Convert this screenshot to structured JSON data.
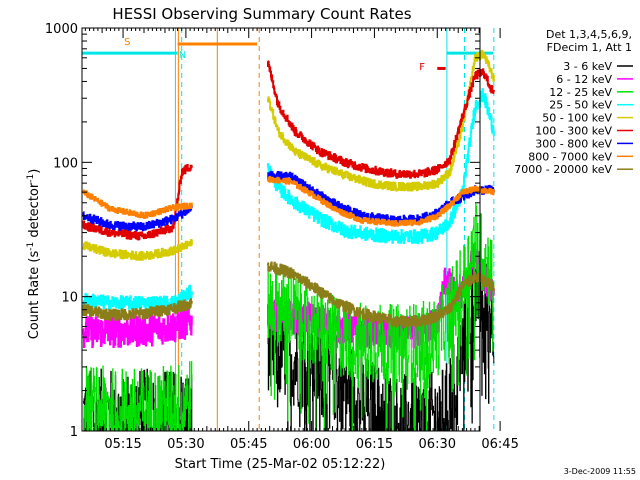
{
  "chart_data": {
    "type": "line",
    "title": "HESSI Observing Summary Count Rates",
    "xlabel": "Start Time (25-Mar-02 05:12:22)",
    "ylabel_main": "Count Rate (s",
    "ylabel_sup1": "-1",
    "ylabel_mid": " detector",
    "ylabel_sup2": "-1",
    "ylabel_end": ")",
    "y_scale": "log",
    "ylim": [
      1,
      1000
    ],
    "xlim_minutes": [
      5.2,
      100.2
    ],
    "x_ticks": [
      {
        "label": "05:15",
        "t": 15
      },
      {
        "label": "05:30",
        "t": 30
      },
      {
        "label": "05:45",
        "t": 45
      },
      {
        "label": "06:00",
        "t": 60
      },
      {
        "label": "06:15",
        "t": 75
      },
      {
        "label": "06:30",
        "t": 90
      },
      {
        "label": "06:45",
        "t": 105
      }
    ],
    "y_ticks": [
      {
        "label": "1",
        "v": 1
      },
      {
        "label": "10",
        "v": 10
      },
      {
        "label": "100",
        "v": 100
      },
      {
        "label": "1000",
        "v": 1000
      }
    ],
    "legend": {
      "placement": "right",
      "header": [
        "Det 1,3,4,5,6,9,",
        "FDecim 1, Att 1"
      ]
    },
    "timestamp": "3-Dec-2009 11:55",
    "annotations": [
      {
        "label": "S",
        "t": 16.0,
        "v": 800,
        "color": "#ff8000"
      },
      {
        "label": "N",
        "t": 29.2,
        "v": 640,
        "color": "#00e5e5"
      },
      {
        "label": "F",
        "t": 86.4,
        "v": 520,
        "color": "#e00000"
      }
    ],
    "markers": {
      "cyan_solid_t": [
        5.2,
        27.5,
        92.3
      ],
      "cyan_dashed_t": [
        29.0,
        96.5,
        103.5
      ],
      "orange_solid_t": [
        28.2,
        37.5
      ],
      "orange_dashed_t": [
        47.5
      ],
      "cyan_top_bars": [
        {
          "t0": 5.2,
          "t1": 28.0,
          "v": 650
        },
        {
          "t0": 92.3,
          "t1": 103.3,
          "v": 650
        }
      ],
      "orange_top_bars": [
        {
          "t0": 28.0,
          "t1": 47.0,
          "v": 760
        }
      ],
      "red_top_bars": [
        {
          "t0": 90.0,
          "t1": 92.0,
          "v": 500
        }
      ]
    },
    "series": [
      {
        "name": "3 - 6 keV",
        "color": "#000000",
        "noise": 0.35,
        "segments": [
          {
            "t": [
              5.5,
              12,
              20,
              26,
              31.5
            ],
            "v": [
              1.3,
              1.3,
              1.3,
              1.3,
              1.3
            ]
          },
          {
            "t": [
              49.5,
              52,
              56,
              60,
              66,
              72,
              80,
              88,
              92,
              96,
              99,
              103.5
            ],
            "v": [
              4.5,
              4.0,
              3.3,
              3.0,
              2.5,
              1.7,
              1.2,
              1.2,
              1.4,
              4,
              11,
              7
            ]
          }
        ]
      },
      {
        "name": "6 - 12 keV",
        "color": "#ff00ff",
        "noise": 0.12,
        "segments": [
          {
            "t": [
              5.5,
              12,
              20,
              27,
              31.5
            ],
            "v": [
              5.5,
              5.5,
              5.6,
              6.0,
              6.5
            ]
          },
          {
            "t": [
              49.5,
              55,
              60,
              66,
              72,
              80,
              86,
              90,
              92,
              95,
              99,
              101,
              103.5
            ],
            "v": [
              7.5,
              7.0,
              6.8,
              6.0,
              5.5,
              5.3,
              5.5,
              6.5,
              14,
              9,
              20,
              14,
              11
            ]
          }
        ]
      },
      {
        "name": "12 - 25 keV",
        "color": "#00e000",
        "noise": 0.3,
        "segments": [
          {
            "t": [
              5.5,
              12,
              20,
              27,
              31.5
            ],
            "v": [
              1.6,
              1.5,
              1.5,
              1.6,
              1.8
            ]
          },
          {
            "t": [
              49.5,
              55,
              60,
              66,
              72,
              80,
              86,
              90,
              93,
              96,
              99,
              101,
              103.5
            ],
            "v": [
              9,
              8,
              6,
              5,
              4.6,
              4.4,
              4.6,
              5,
              8,
              12,
              27,
              20,
              14
            ]
          }
        ]
      },
      {
        "name": "25 - 50 keV",
        "color": "#00ffff",
        "noise": 0.05,
        "segments": [
          {
            "t": [
              5.5,
              12,
              20,
              27,
              31.5
            ],
            "v": [
              9.5,
              9,
              9,
              9,
              11
            ]
          },
          {
            "t": [
              49.5,
              52,
              56,
              62,
              68,
              74,
              80,
              86,
              90,
              93,
              96,
              99,
              101,
              103.5
            ],
            "v": [
              90,
              65,
              50,
              38,
              31,
              29,
              28,
              28,
              30,
              36,
              60,
              260,
              320,
              170
            ]
          }
        ]
      },
      {
        "name": "50 - 100 keV",
        "color": "#d4cc00",
        "noise": 0.03,
        "segments": [
          {
            "t": [
              5.5,
              12,
              20,
              27,
              31.5
            ],
            "v": [
              24,
              21,
              20,
              22,
              25
            ]
          },
          {
            "t": [
              49.5,
              52,
              56,
              62,
              68,
              74,
              80,
              86,
              90,
              93,
              96,
              99,
              101,
              103.5
            ],
            "v": [
              310,
              170,
              120,
              95,
              80,
              70,
              66,
              66,
              70,
              85,
              180,
              600,
              640,
              420
            ]
          }
        ]
      },
      {
        "name": "100 - 300 keV",
        "color": "#e00000",
        "noise": 0.03,
        "segments": [
          {
            "t": [
              5.5,
              12,
              20,
              27,
              29,
              31.5
            ],
            "v": [
              34,
              30,
              28,
              33,
              85,
              95
            ]
          },
          {
            "t": [
              49.5,
              52,
              56,
              62,
              68,
              74,
              80,
              86,
              90,
              93,
              96,
              99,
              101,
              103.5
            ],
            "v": [
              560,
              270,
              170,
              120,
              100,
              88,
              82,
              82,
              88,
              105,
              220,
              440,
              470,
              320
            ]
          }
        ]
      },
      {
        "name": "300 - 800 keV",
        "color": "#0000ff",
        "noise": 0.03,
        "segments": [
          {
            "t": [
              5.5,
              12,
              20,
              27,
              31.5
            ],
            "v": [
              40,
              34,
              33,
              38,
              46
            ]
          },
          {
            "t": [
              49.5,
              55,
              60,
              66,
              72,
              80,
              86,
              90,
              93,
              96,
              99,
              101,
              103.5
            ],
            "v": [
              80,
              78,
              62,
              48,
              40,
              37,
              38,
              42,
              50,
              55,
              62,
              62,
              63
            ]
          }
        ]
      },
      {
        "name": "800 - 7000 keV",
        "color": "#ff8000",
        "noise": 0.02,
        "segments": [
          {
            "t": [
              5.5,
              12,
              20,
              27,
              31.5
            ],
            "v": [
              60,
              45,
              40,
              46,
              48
            ]
          },
          {
            "t": [
              49.5,
              55,
              60,
              66,
              72,
              80,
              86,
              90,
              93,
              96,
              99,
              101,
              103.5
            ],
            "v": [
              75,
              72,
              58,
              44,
              37,
              35,
              36,
              40,
              48,
              60,
              63,
              62,
              60
            ]
          }
        ]
      },
      {
        "name": "7000 - 20000 keV",
        "color": "#8b7d1a",
        "noise": 0.04,
        "segments": [
          {
            "t": [
              5.5,
              12,
              20,
              27,
              31.5
            ],
            "v": [
              8,
              7.3,
              7.5,
              8.2,
              9
            ]
          },
          {
            "t": [
              49.5,
              55,
              60,
              66,
              72,
              80,
              86,
              90,
              93,
              96,
              99,
              101,
              103.5
            ],
            "v": [
              17,
              15,
              12,
              9,
              7.5,
              6.5,
              6.6,
              7.2,
              8.2,
              12,
              14,
              13,
              12
            ]
          }
        ]
      }
    ]
  }
}
